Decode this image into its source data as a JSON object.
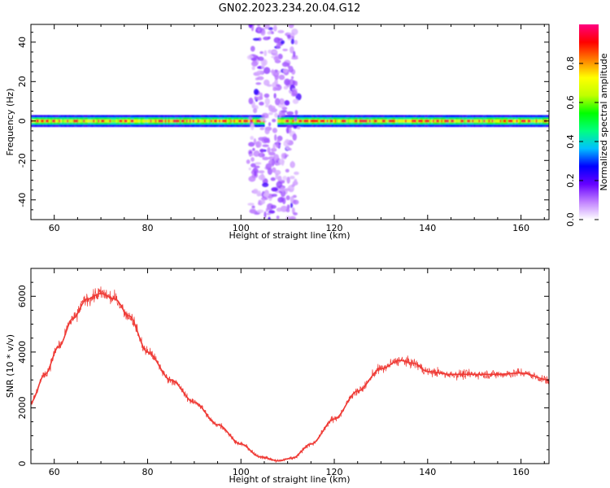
{
  "chart_data": [
    {
      "type": "heatmap",
      "title": "GN02.2023.234.20.04.G12",
      "xlabel": "Height of straight line (km)",
      "ylabel": "Frequency (Hz)",
      "xlim": [
        55,
        166
      ],
      "ylim": [
        -50,
        49
      ],
      "xticks": [
        60,
        80,
        100,
        120,
        140,
        160
      ],
      "yticks": [
        -40,
        -20,
        0,
        20,
        40
      ],
      "colorbar": {
        "label": "Normalized spectral amplitude",
        "range": [
          0,
          1
        ],
        "ticks": [
          "0.0",
          "0.2",
          "0.4",
          "0.6",
          "0.8"
        ],
        "colormap": [
          "#ffffff",
          "#c080ff",
          "#6600ff",
          "#0000ff",
          "#00c0ff",
          "#00ff80",
          "#00ff00",
          "#c0ff00",
          "#ffff00",
          "#ff8000",
          "#ff0000",
          "#ff0080"
        ]
      },
      "features": {
        "carrier_band_hz": [
          -3,
          3
        ],
        "dispersed_region_km": [
          102,
          112
        ],
        "carrier_gap_km": [
          105,
          107.5
        ]
      }
    },
    {
      "type": "line",
      "xlabel": "Height of straight line (km)",
      "ylabel": "SNR (10 * v/v)",
      "xlim": [
        55,
        166
      ],
      "ylim": [
        0,
        7000
      ],
      "xticks": [
        60,
        80,
        100,
        120,
        140,
        160
      ],
      "yticks": [
        0,
        2000,
        4000,
        6000
      ],
      "color": "#ef3b36",
      "x": [
        55,
        58,
        61,
        64,
        67,
        70,
        73,
        76,
        80,
        85,
        90,
        95,
        100,
        104,
        108,
        111,
        115,
        120,
        125,
        130,
        134,
        137,
        140,
        145,
        150,
        155,
        160,
        166
      ],
      "values": [
        2200,
        3200,
        4200,
        5200,
        5900,
        6100,
        5900,
        5300,
        4000,
        3000,
        2200,
        1400,
        700,
        250,
        100,
        200,
        700,
        1600,
        2600,
        3400,
        3700,
        3600,
        3300,
        3200,
        3200,
        3200,
        3250,
        3000
      ]
    }
  ]
}
